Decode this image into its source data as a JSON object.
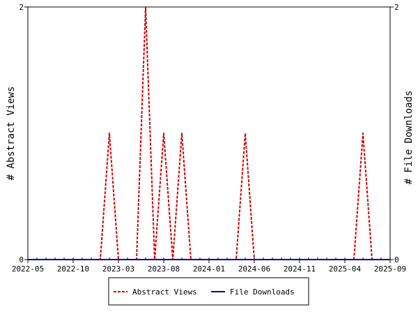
{
  "chart_data": {
    "type": "line",
    "x_axis": {
      "ticks": [
        "2022-05",
        "2022-10",
        "2023-03",
        "2023-08",
        "2024-01",
        "2024-06",
        "2024-11",
        "2025-04",
        "2025-09"
      ],
      "range": [
        "2022-05-01",
        "2025-09-01"
      ]
    },
    "y_left": {
      "label": "# Abstract Views",
      "ticks": [
        "0",
        "2"
      ],
      "range": [
        0,
        2
      ]
    },
    "y_right": {
      "label": "# File Downloads",
      "ticks": [
        "0",
        "2"
      ],
      "range": [
        0,
        2
      ]
    },
    "grid": false,
    "legend": "bottom-center",
    "series": [
      {
        "name": "Abstract Views",
        "axis": "left",
        "color": "#cc0000",
        "style": "dashed",
        "x": [
          "2022-05",
          "2022-06",
          "2022-07",
          "2022-08",
          "2022-09",
          "2022-10",
          "2022-11",
          "2022-12",
          "2023-01",
          "2023-02",
          "2023-03",
          "2023-04",
          "2023-05",
          "2023-06",
          "2023-07",
          "2023-08",
          "2023-09",
          "2023-10",
          "2023-11",
          "2023-12",
          "2024-01",
          "2024-02",
          "2024-03",
          "2024-04",
          "2024-05",
          "2024-06",
          "2024-07",
          "2024-08",
          "2024-09",
          "2024-10",
          "2024-11",
          "2024-12",
          "2025-01",
          "2025-02",
          "2025-03",
          "2025-04",
          "2025-05",
          "2025-06",
          "2025-07",
          "2025-08",
          "2025-09"
        ],
        "y": [
          0,
          0,
          0,
          0,
          0,
          0,
          0,
          0,
          0,
          1,
          0,
          0,
          0,
          2,
          0,
          1,
          0,
          1,
          0,
          0,
          0,
          0,
          0,
          0,
          1,
          0,
          0,
          0,
          0,
          0,
          0,
          0,
          0,
          0,
          0,
          0,
          0,
          1,
          0,
          0,
          0
        ]
      },
      {
        "name": "File Downloads",
        "axis": "right",
        "color": "#00009c",
        "style": "solid",
        "x": [
          "2022-05",
          "2022-06",
          "2022-07",
          "2022-08",
          "2022-09",
          "2022-10",
          "2022-11",
          "2022-12",
          "2023-01",
          "2023-02",
          "2023-03",
          "2023-04",
          "2023-05",
          "2023-06",
          "2023-07",
          "2023-08",
          "2023-09",
          "2023-10",
          "2023-11",
          "2023-12",
          "2024-01",
          "2024-02",
          "2024-03",
          "2024-04",
          "2024-05",
          "2024-06",
          "2024-07",
          "2024-08",
          "2024-09",
          "2024-10",
          "2024-11",
          "2024-12",
          "2025-01",
          "2025-02",
          "2025-03",
          "2025-04",
          "2025-05",
          "2025-06",
          "2025-07",
          "2025-08",
          "2025-09"
        ],
        "y": [
          0,
          0,
          0,
          0,
          0,
          0,
          0,
          0,
          0,
          0,
          0,
          0,
          0,
          0,
          0,
          0,
          0,
          0,
          0,
          0,
          0,
          0,
          0,
          0,
          0,
          0,
          0,
          0,
          0,
          0,
          0,
          0,
          0,
          0,
          0,
          0,
          0,
          0,
          0,
          0,
          0
        ]
      }
    ]
  }
}
